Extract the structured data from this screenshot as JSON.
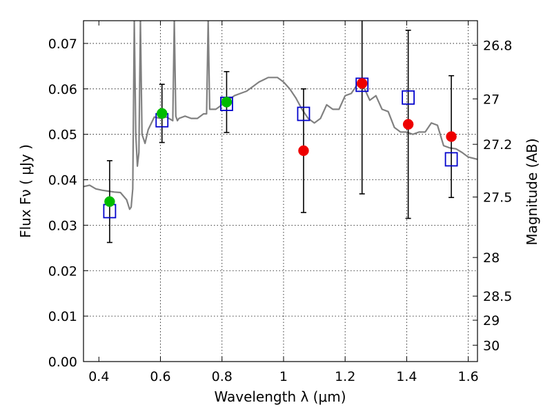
{
  "chart_data": {
    "type": "scatter",
    "title": "",
    "xlabel": "Wavelength  λ (μm)",
    "ylabel": "Flux  Fν  ( μJy )",
    "ylabel_right": "Magnitude (AB)",
    "xlim": [
      0.35,
      1.63
    ],
    "ylim": [
      0.0,
      0.075
    ],
    "grid": true,
    "x_ticks": [
      0.4,
      0.6,
      0.8,
      1.0,
      1.2,
      1.4,
      1.6
    ],
    "x_tick_labels": [
      "0.4",
      "0.6",
      "0.8",
      "1",
      "1.2",
      "1.4",
      "1.6"
    ],
    "y_ticks": [
      0.0,
      0.01,
      0.02,
      0.03,
      0.04,
      0.05,
      0.06,
      0.07
    ],
    "y_tick_labels": [
      "0.00",
      "0.01",
      "0.02",
      "0.03",
      "0.04",
      "0.05",
      "0.06",
      "0.07"
    ],
    "right_ticks": [
      {
        "flux": 0.0696,
        "label": "26.8"
      },
      {
        "flux": 0.0578,
        "label": "27"
      },
      {
        "flux": 0.0478,
        "label": "27.2"
      },
      {
        "flux": 0.0362,
        "label": "27.5"
      },
      {
        "flux": 0.0229,
        "label": "28"
      },
      {
        "flux": 0.0144,
        "label": "28.5"
      },
      {
        "flux": 0.0091,
        "label": "29"
      },
      {
        "flux": 0.0036,
        "label": "30"
      }
    ],
    "series": [
      {
        "marker": "green-circle",
        "color": "#00bb00",
        "x": [
          0.435,
          0.605,
          0.815
        ],
        "y": [
          0.0352,
          0.0546,
          0.0571
        ],
        "yerr": [
          0.009,
          0.0064,
          0.0067
        ]
      },
      {
        "marker": "red-circle",
        "color": "#ee0000",
        "x": [
          1.065,
          1.255,
          1.405,
          1.545
        ],
        "y": [
          0.0464,
          0.0612,
          0.0522,
          0.0495
        ],
        "yerr": [
          0.0136,
          0.0243,
          0.0207,
          0.0134
        ]
      },
      {
        "marker": "blue-open-square",
        "color": "#0000cc",
        "x": [
          0.435,
          0.605,
          0.815,
          1.065,
          1.255,
          1.405,
          1.545
        ],
        "y": [
          0.0331,
          0.0531,
          0.0567,
          0.0545,
          0.0609,
          0.0581,
          0.0445
        ]
      },
      {
        "marker": "gray-line",
        "color": "#808080",
        "x": [
          0.35,
          0.37,
          0.39,
          0.41,
          0.43,
          0.45,
          0.47,
          0.49,
          0.5,
          0.505,
          0.51,
          0.515,
          0.52,
          0.525,
          0.53,
          0.535,
          0.54,
          0.55,
          0.56,
          0.58,
          0.6,
          0.62,
          0.64,
          0.645,
          0.65,
          0.655,
          0.66,
          0.68,
          0.7,
          0.72,
          0.74,
          0.75,
          0.755,
          0.76,
          0.78,
          0.8,
          0.82,
          0.84,
          0.86,
          0.88,
          0.9,
          0.92,
          0.95,
          0.98,
          1.0,
          1.02,
          1.04,
          1.06,
          1.08,
          1.1,
          1.12,
          1.14,
          1.16,
          1.18,
          1.2,
          1.22,
          1.24,
          1.26,
          1.28,
          1.3,
          1.32,
          1.34,
          1.36,
          1.38,
          1.4,
          1.42,
          1.44,
          1.46,
          1.48,
          1.5,
          1.52,
          1.54,
          1.56,
          1.58,
          1.6,
          1.63
        ],
        "y": [
          0.0385,
          0.0388,
          0.038,
          0.0377,
          0.0375,
          0.0373,
          0.0372,
          0.0356,
          0.0335,
          0.034,
          0.038,
          0.075,
          0.05,
          0.043,
          0.046,
          0.075,
          0.05,
          0.048,
          0.051,
          0.0538,
          0.0535,
          0.0538,
          0.053,
          0.075,
          0.054,
          0.053,
          0.0535,
          0.054,
          0.0535,
          0.0535,
          0.0545,
          0.0545,
          0.075,
          0.0555,
          0.0555,
          0.0565,
          0.0575,
          0.0585,
          0.059,
          0.0595,
          0.0605,
          0.0615,
          0.0625,
          0.0625,
          0.0615,
          0.06,
          0.058,
          0.0555,
          0.0535,
          0.0525,
          0.0535,
          0.0565,
          0.0555,
          0.0555,
          0.0585,
          0.059,
          0.061,
          0.0605,
          0.0575,
          0.0585,
          0.0555,
          0.055,
          0.0515,
          0.0505,
          0.0505,
          0.05,
          0.0505,
          0.0505,
          0.0525,
          0.052,
          0.0475,
          0.047,
          0.0468,
          0.046,
          0.045,
          0.0445
        ]
      }
    ]
  }
}
